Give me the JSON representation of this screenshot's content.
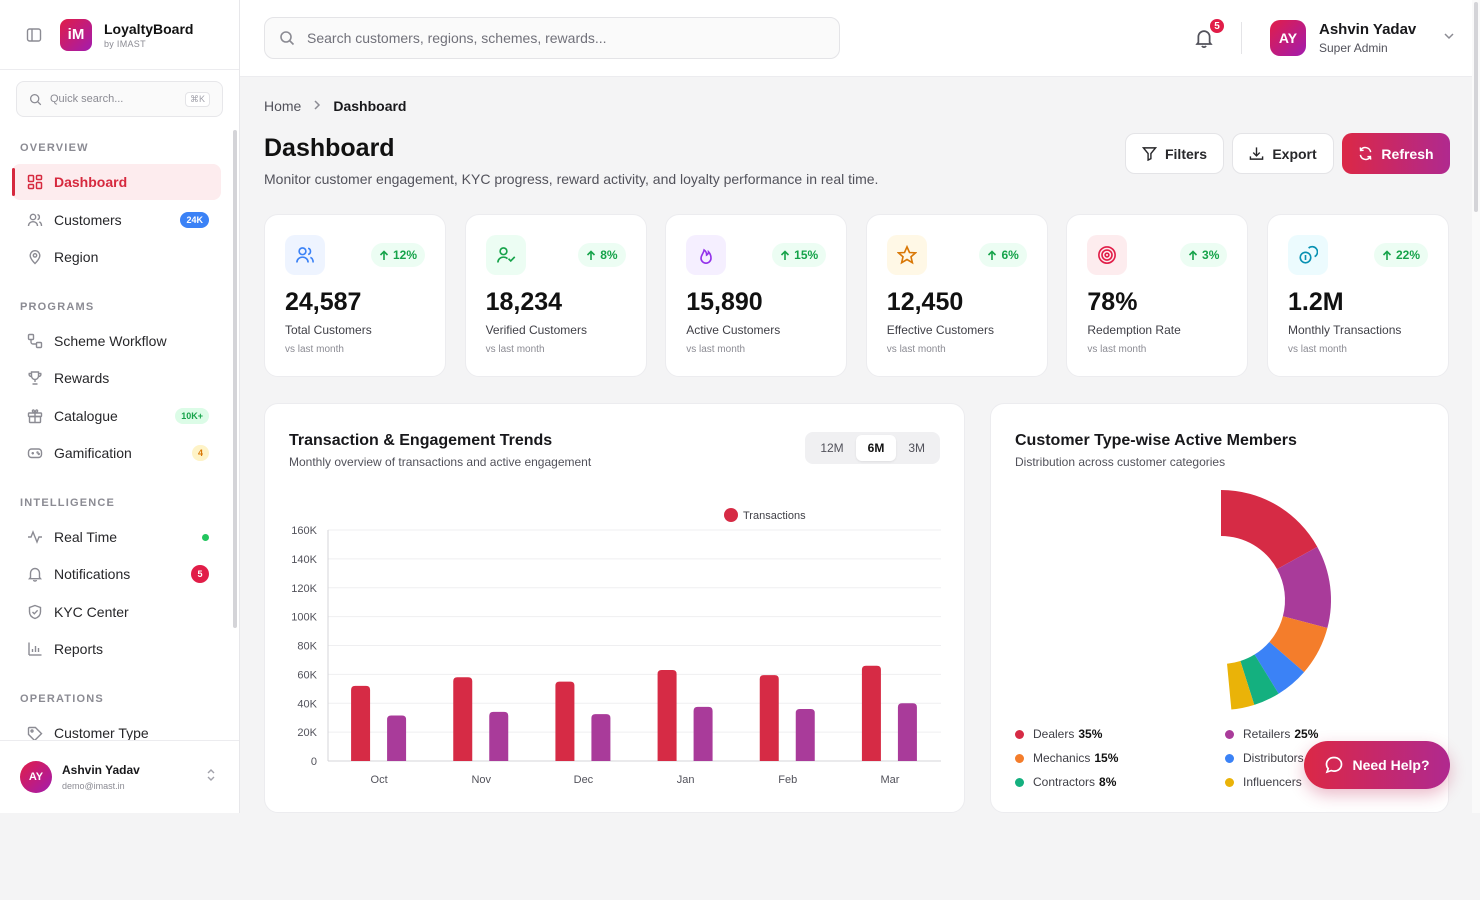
{
  "brand": {
    "name": "LoyaltyBoard",
    "byline": "by IMAST",
    "logo_text": "iM"
  },
  "quick_search": {
    "placeholder": "Quick search...",
    "shortcut": "⌘K"
  },
  "sidebar": {
    "sections": [
      {
        "label": "OVERVIEW"
      },
      {
        "label": "PROGRAMS"
      },
      {
        "label": "INTELLIGENCE"
      },
      {
        "label": "OPERATIONS"
      }
    ],
    "items": [
      {
        "label": "Dashboard",
        "icon": "grid-icon",
        "active": true
      },
      {
        "label": "Customers",
        "icon": "users-icon",
        "badge": "24K"
      },
      {
        "label": "Region",
        "icon": "map-pin-icon"
      },
      {
        "label": "Scheme Workflow",
        "icon": "workflow-icon"
      },
      {
        "label": "Rewards",
        "icon": "trophy-icon"
      },
      {
        "label": "Catalogue",
        "icon": "gift-icon",
        "badge": "10K+"
      },
      {
        "label": "Gamification",
        "icon": "gamepad-icon",
        "badge": "4"
      },
      {
        "label": "Real Time",
        "icon": "activity-icon",
        "status": "live"
      },
      {
        "label": "Notifications",
        "icon": "bell-icon",
        "badge": "5"
      },
      {
        "label": "KYC Center",
        "icon": "shield-check-icon"
      },
      {
        "label": "Reports",
        "icon": "bar-chart-icon"
      },
      {
        "label": "Customer Type",
        "icon": "tag-icon"
      }
    ],
    "footer": {
      "initials": "AY",
      "name": "Ashvin Yadav",
      "email": "demo@imast.in"
    }
  },
  "topbar": {
    "search_placeholder": "Search customers, regions, schemes, rewards...",
    "notification_count": "5",
    "user": {
      "initials": "AY",
      "name": "Ashvin Yadav",
      "role": "Super Admin"
    }
  },
  "breadcrumb": {
    "home": "Home",
    "current": "Dashboard"
  },
  "page": {
    "title": "Dashboard",
    "subtitle": "Monitor customer engagement, KYC progress, reward activity, and loyalty performance in real time."
  },
  "actions": {
    "filters": "Filters",
    "export": "Export",
    "refresh": "Refresh"
  },
  "kpis": [
    {
      "value": "24,587",
      "label": "Total Customers",
      "change": "12%",
      "note": "vs last month",
      "icon": "users-icon",
      "color": "#3b82f6",
      "bg": "#eef4ff"
    },
    {
      "value": "18,234",
      "label": "Verified Customers",
      "change": "8%",
      "note": "vs last month",
      "icon": "user-check-icon",
      "color": "#16a34a",
      "bg": "#ecfdf3"
    },
    {
      "value": "15,890",
      "label": "Active Customers",
      "change": "15%",
      "note": "vs last month",
      "icon": "flame-icon",
      "color": "#9333ea",
      "bg": "#f5efff"
    },
    {
      "value": "12,450",
      "label": "Effective Customers",
      "change": "6%",
      "note": "vs last month",
      "icon": "star-icon",
      "color": "#d97706",
      "bg": "#fff8e6"
    },
    {
      "value": "78%",
      "label": "Redemption Rate",
      "change": "3%",
      "note": "vs last month",
      "icon": "target-icon",
      "color": "#e11d48",
      "bg": "#fdecee"
    },
    {
      "value": "1.2M",
      "label": "Monthly Transactions",
      "change": "22%",
      "note": "vs last month",
      "icon": "coins-icon",
      "color": "#0891b2",
      "bg": "#ecfbfe"
    }
  ],
  "trend_card": {
    "title": "Transaction & Engagement Trends",
    "subtitle": "Monthly overview of transactions and active engagement",
    "ranges": [
      "12M",
      "6M",
      "3M"
    ],
    "selected_range": "6M"
  },
  "pie_card": {
    "title": "Customer Type-wise Active Members",
    "subtitle": "Distribution across customer categories"
  },
  "help_button": "Need Help?",
  "colors": {
    "primary": "#db2846",
    "secondary": "#a93b9a"
  },
  "chart_data": [
    {
      "type": "bar",
      "categories": [
        "Oct",
        "Nov",
        "Dec",
        "Jan",
        "Feb",
        "Mar"
      ],
      "series": [
        {
          "name": "Transactions",
          "color": "#d62b45",
          "values": [
            52000,
            58000,
            55000,
            63000,
            59500,
            66000
          ]
        },
        {
          "color": "#a93b9a",
          "values": [
            31500,
            34000,
            32500,
            37500,
            36000,
            40000
          ]
        }
      ],
      "ylim": [
        0,
        160000
      ],
      "yticks": [
        "0",
        "20K",
        "40K",
        "60K",
        "80K",
        "100K",
        "120K",
        "140K",
        "160K"
      ],
      "grid": true,
      "legend": "top-center"
    },
    {
      "type": "pie",
      "labels": [
        "Dealers",
        "Retailers",
        "Mechanics",
        "Distributors",
        "Contractors",
        "Influencers"
      ],
      "values": [
        35,
        25,
        15,
        10,
        8,
        7
      ],
      "display": [
        "35%",
        "25%",
        "15%",
        "",
        "8%",
        ""
      ],
      "colors": [
        "#d62b45",
        "#a93b9a",
        "#f47d2b",
        "#3b82f6",
        "#14b07f",
        "#eab308"
      ],
      "style": "donut",
      "legend": "bottom"
    }
  ]
}
